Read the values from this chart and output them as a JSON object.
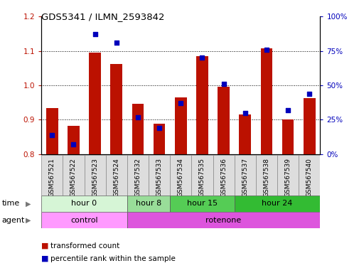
{
  "title": "GDS5341 / ILMN_2593842",
  "samples": [
    "GSM567521",
    "GSM567522",
    "GSM567523",
    "GSM567524",
    "GSM567532",
    "GSM567533",
    "GSM567534",
    "GSM567535",
    "GSM567536",
    "GSM567537",
    "GSM567538",
    "GSM567539",
    "GSM567540"
  ],
  "red_values": [
    0.935,
    0.882,
    1.095,
    1.062,
    0.946,
    0.888,
    0.965,
    1.085,
    0.995,
    0.915,
    1.108,
    0.902,
    0.963
  ],
  "blue_values_pct": [
    14,
    7,
    87,
    81,
    27,
    19,
    37,
    70,
    51,
    30,
    76,
    32,
    44
  ],
  "ylim_left": [
    0.8,
    1.2
  ],
  "ylim_right": [
    0,
    100
  ],
  "yticks_left": [
    0.8,
    0.9,
    1.0,
    1.1,
    1.2
  ],
  "yticks_right": [
    0,
    25,
    50,
    75,
    100
  ],
  "ytick_labels_right": [
    "0%",
    "25%",
    "50%",
    "75%",
    "100%"
  ],
  "grid_yticks": [
    0.9,
    1.0,
    1.1
  ],
  "bar_color": "#bb1100",
  "dot_color": "#0000bb",
  "bar_bottom": 0.8,
  "time_groups": [
    {
      "label": "hour 0",
      "start": 0,
      "end": 4,
      "color": "#d6f5d6"
    },
    {
      "label": "hour 8",
      "start": 4,
      "end": 6,
      "color": "#99dd99"
    },
    {
      "label": "hour 15",
      "start": 6,
      "end": 9,
      "color": "#55cc55"
    },
    {
      "label": "hour 24",
      "start": 9,
      "end": 13,
      "color": "#33bb33"
    }
  ],
  "agent_groups": [
    {
      "label": "control",
      "start": 0,
      "end": 4,
      "color": "#ff99ff"
    },
    {
      "label": "rotenone",
      "start": 4,
      "end": 13,
      "color": "#dd55dd"
    }
  ],
  "legend_items": [
    {
      "label": "transformed count",
      "color": "#bb1100"
    },
    {
      "label": "percentile rank within the sample",
      "color": "#0000bb"
    }
  ],
  "time_label": "time",
  "agent_label": "agent",
  "bar_width": 0.55,
  "tick_color_left": "#bb1100",
  "tick_color_right": "#0000bb",
  "sample_box_color": "#dddddd",
  "sample_box_edge": "#888888"
}
